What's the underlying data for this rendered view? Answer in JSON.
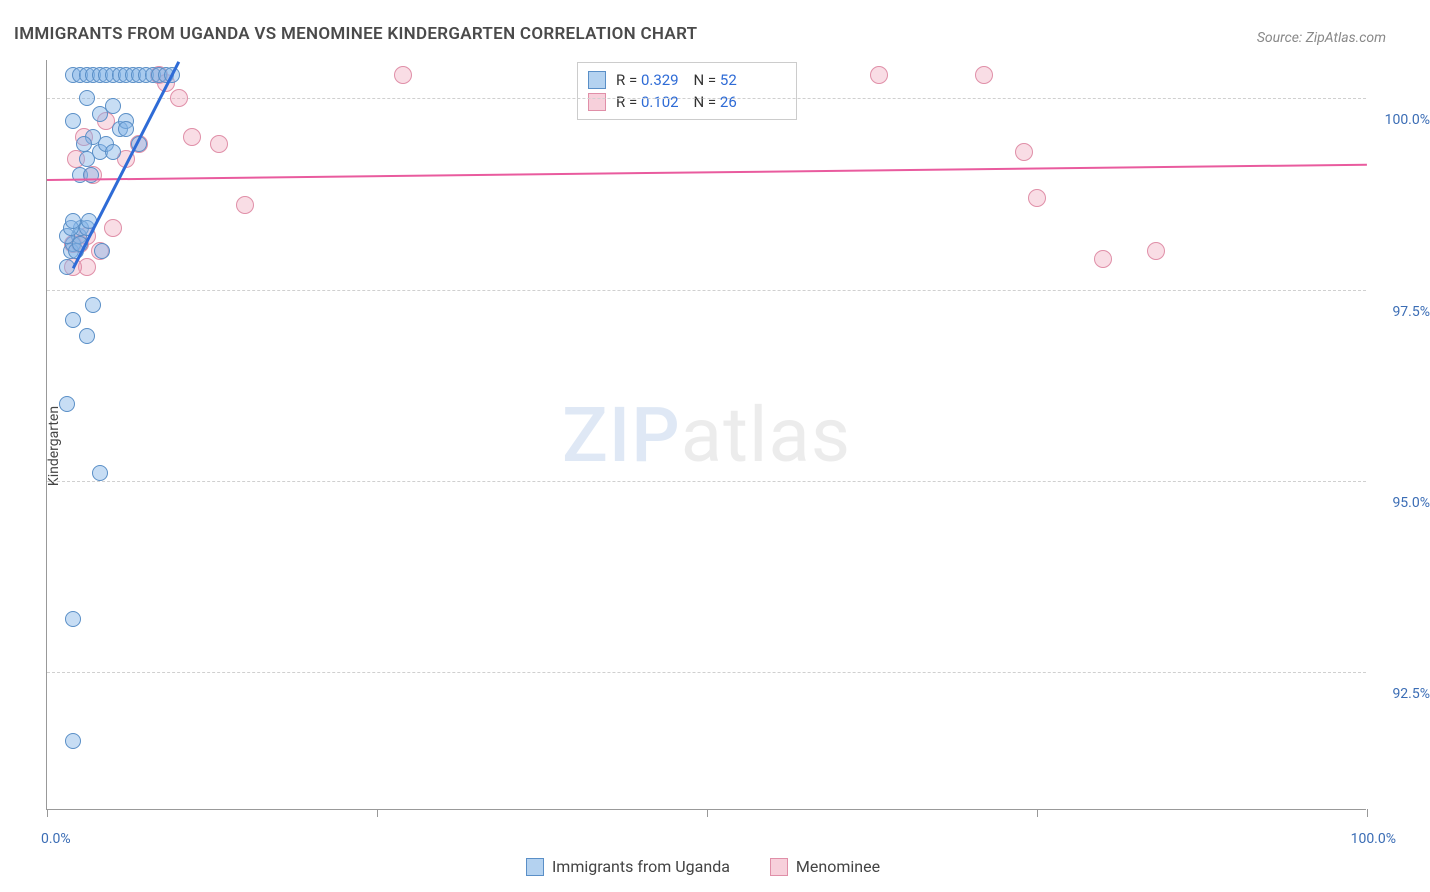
{
  "title": "IMMIGRANTS FROM UGANDA VS MENOMINEE KINDERGARTEN CORRELATION CHART",
  "source": "Source: ZipAtlas.com",
  "y_axis_label": "Kindergarten",
  "watermark": {
    "part1": "ZIP",
    "part2": "atlas"
  },
  "plot": {
    "x_min": 0,
    "x_max": 100,
    "y_min": 90.7,
    "y_max": 100.5,
    "x_ticks": [
      0,
      25,
      50,
      75,
      100
    ],
    "x_tick_labels": {
      "left": "0.0%",
      "right": "100.0%"
    },
    "y_gridlines": [
      92.5,
      95.0,
      97.5,
      100.0
    ],
    "y_tick_labels": [
      "92.5%",
      "95.0%",
      "97.5%",
      "100.0%"
    ],
    "grid_color": "#d0d0d0"
  },
  "series": {
    "blue": {
      "label": "Immigrants from Uganda",
      "color_fill": "rgba(130,180,230,0.45)",
      "color_stroke": "#5a8fc7",
      "R": "0.329",
      "N": "52",
      "trend": {
        "x1": 2,
        "y1": 97.8,
        "x2": 10,
        "y2": 100.5
      },
      "points": [
        [
          1.5,
          97.8
        ],
        [
          1.8,
          98.0
        ],
        [
          2.0,
          98.1
        ],
        [
          2.2,
          98.0
        ],
        [
          2.4,
          98.2
        ],
        [
          2.6,
          98.3
        ],
        [
          1.5,
          98.2
        ],
        [
          1.8,
          98.3
        ],
        [
          2.0,
          98.4
        ],
        [
          3.0,
          98.3
        ],
        [
          3.2,
          98.4
        ],
        [
          2.5,
          98.1
        ],
        [
          2.0,
          97.1
        ],
        [
          3.5,
          97.3
        ],
        [
          3.0,
          96.9
        ],
        [
          1.5,
          96.0
        ],
        [
          4.0,
          95.1
        ],
        [
          2.0,
          93.2
        ],
        [
          2.0,
          91.6
        ],
        [
          2.5,
          99.0
        ],
        [
          3.0,
          99.2
        ],
        [
          3.5,
          99.5
        ],
        [
          4.0,
          99.3
        ],
        [
          4.5,
          99.4
        ],
        [
          5.0,
          99.3
        ],
        [
          5.5,
          99.6
        ],
        [
          6.0,
          99.7
        ],
        [
          2.0,
          100.3
        ],
        [
          2.5,
          100.3
        ],
        [
          3.0,
          100.3
        ],
        [
          3.5,
          100.3
        ],
        [
          4.0,
          100.3
        ],
        [
          4.5,
          100.3
        ],
        [
          5.0,
          100.3
        ],
        [
          5.5,
          100.3
        ],
        [
          6.0,
          100.3
        ],
        [
          6.5,
          100.3
        ],
        [
          7.0,
          100.3
        ],
        [
          7.5,
          100.3
        ],
        [
          8.0,
          100.3
        ],
        [
          8.5,
          100.3
        ],
        [
          9.0,
          100.3
        ],
        [
          9.5,
          100.3
        ],
        [
          4.0,
          99.8
        ],
        [
          5.0,
          99.9
        ],
        [
          6.0,
          99.6
        ],
        [
          7.0,
          99.4
        ],
        [
          2.8,
          99.4
        ],
        [
          3.3,
          99.0
        ],
        [
          3.0,
          100.0
        ],
        [
          4.2,
          98.0
        ],
        [
          2.0,
          99.7
        ]
      ]
    },
    "pink": {
      "label": "Menominee",
      "color_fill": "rgba(240,170,190,0.40)",
      "color_stroke": "#e08fa8",
      "R": "0.102",
      "N": "26",
      "trend": {
        "x1": 0,
        "y1": 98.95,
        "x2": 100,
        "y2": 99.15
      },
      "points": [
        [
          2.0,
          98.1
        ],
        [
          2.5,
          98.1
        ],
        [
          3.0,
          98.2
        ],
        [
          4.0,
          98.0
        ],
        [
          5.0,
          98.3
        ],
        [
          6.0,
          99.2
        ],
        [
          7.0,
          99.4
        ],
        [
          8.5,
          100.3
        ],
        [
          9.0,
          100.2
        ],
        [
          10.0,
          100.0
        ],
        [
          11.0,
          99.5
        ],
        [
          13.0,
          99.4
        ],
        [
          15.0,
          98.6
        ],
        [
          27.0,
          100.3
        ],
        [
          63.0,
          100.3
        ],
        [
          71.0,
          100.3
        ],
        [
          74.0,
          99.3
        ],
        [
          75.0,
          98.7
        ],
        [
          80.0,
          97.9
        ],
        [
          84.0,
          98.0
        ],
        [
          3.5,
          99.0
        ],
        [
          4.5,
          99.7
        ],
        [
          3.0,
          97.8
        ],
        [
          2.2,
          99.2
        ],
        [
          2.8,
          99.5
        ],
        [
          2.0,
          97.8
        ]
      ]
    }
  },
  "stats_legend": {
    "rows": [
      {
        "swatch": "blue",
        "r_label": "R =",
        "r_val": "0.329",
        "n_label": "N =",
        "n_val": "52"
      },
      {
        "swatch": "pink",
        "r_label": "R =",
        "r_val": "0.102",
        "n_label": "N =",
        "n_val": "26"
      }
    ]
  }
}
